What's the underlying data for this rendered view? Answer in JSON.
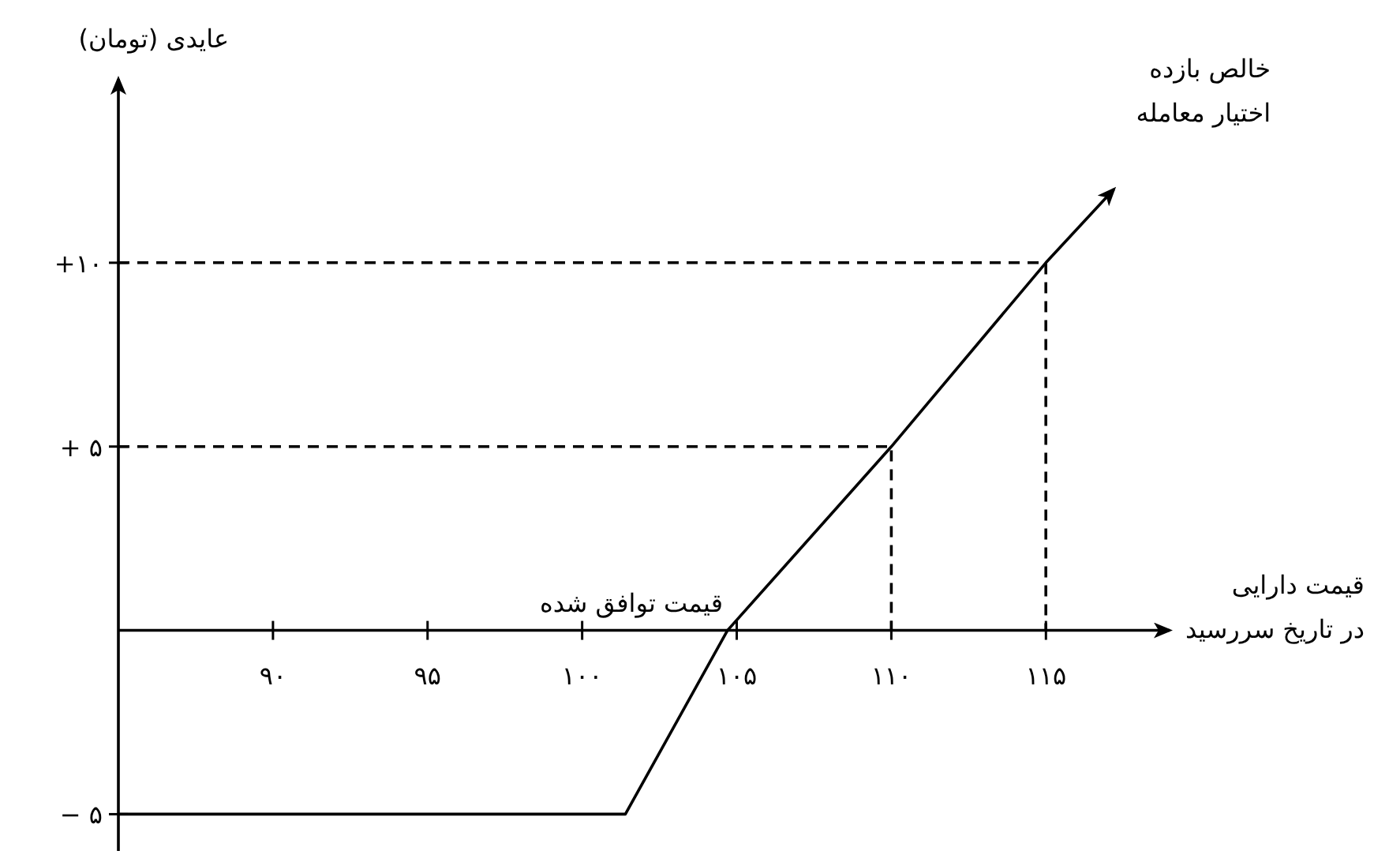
{
  "chart_data": {
    "type": "line",
    "ylabel": "عایدی (تومان)",
    "xlabel": "قیمت دارایی در تاریخ سررسید",
    "annotations": [
      "قیمت توافق شده"
    ],
    "xlim": [
      85,
      119
    ],
    "ylim": [
      -6,
      15
    ],
    "xticks": [
      {
        "value": 90,
        "label": "۹۰"
      },
      {
        "value": 95,
        "label": "۹۵"
      },
      {
        "value": 100,
        "label": "۱۰۰"
      },
      {
        "value": 105,
        "label": "۱۰۵"
      },
      {
        "value": 110,
        "label": "۱۱۰"
      },
      {
        "value": 115,
        "label": "۱۱۵"
      }
    ],
    "yticks": [
      {
        "value": -5,
        "label": "− ۵"
      },
      {
        "value": 5,
        "label": "+ ۵"
      },
      {
        "value": 10,
        "label": "+۱۰"
      }
    ],
    "grid": false,
    "legend": false,
    "series": [
      {
        "name": "خالص بازده اختیار معامله",
        "color": "#000000",
        "x": [
          85,
          101.4,
          104.7,
          110,
          115,
          117.2
        ],
        "values": [
          -5,
          -5,
          0,
          5,
          10,
          12
        ]
      },
      {
        "color": "#000000",
        "line_style": "dashed",
        "x": [
          85,
          115,
          115
        ],
        "values": [
          10,
          10,
          0
        ]
      },
      {
        "color": "#000000",
        "line_style": "dashed",
        "x": [
          85,
          110,
          110
        ],
        "values": [
          5,
          5,
          0
        ]
      }
    ]
  }
}
